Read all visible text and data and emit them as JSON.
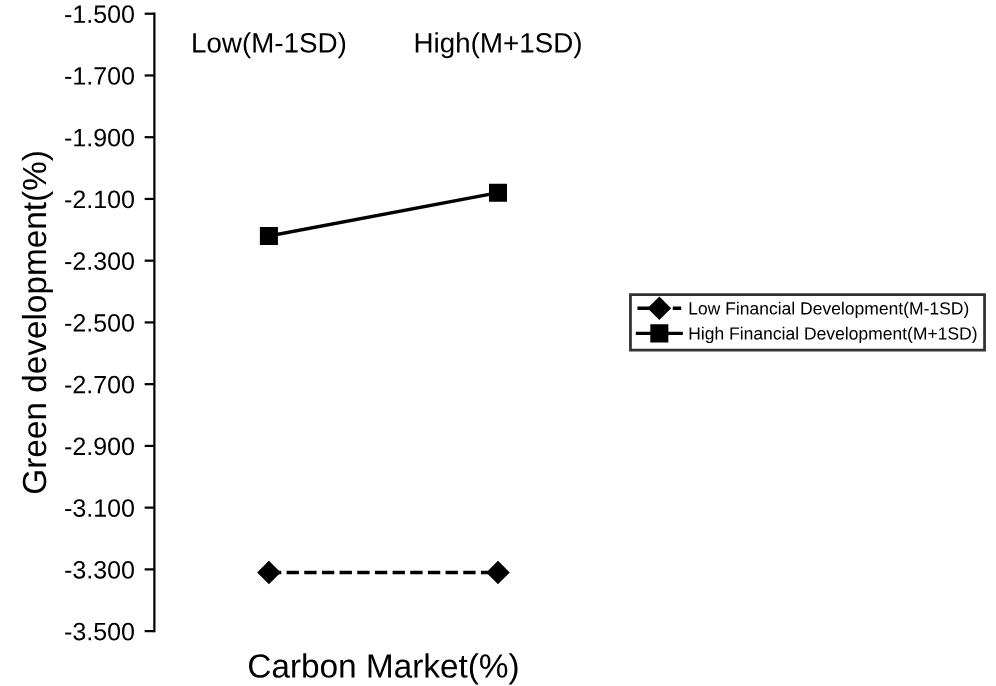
{
  "chart_data": {
    "type": "line",
    "xlabel": "Carbon Market(%)",
    "ylabel": "Green development(%)",
    "categories": [
      "Low(M-1SD)",
      "High(M+1SD)"
    ],
    "series": [
      {
        "name": "Low Financial Development(M-1SD)",
        "color": "#000000",
        "values": [
          -3.31,
          -3.31
        ],
        "marker": "diamond",
        "line_style": "dashed"
      },
      {
        "name": "High Financial Development(M+1SD)",
        "color": "#000000",
        "values": [
          -2.22,
          -2.08
        ],
        "marker": "square",
        "line_style": "solid"
      }
    ],
    "ylim": [
      -3.5,
      -1.5
    ],
    "yticks": [
      {
        "value": -3.5,
        "label": "-3.500"
      },
      {
        "value": -3.3,
        "label": "-3.300"
      },
      {
        "value": -3.1,
        "label": "-3.100"
      },
      {
        "value": -2.9,
        "label": "-2.900"
      },
      {
        "value": -2.7,
        "label": "-2.700"
      },
      {
        "value": -2.5,
        "label": "-2.500"
      },
      {
        "value": -2.3,
        "label": "-2.300"
      },
      {
        "value": -2.1,
        "label": "-2.100"
      },
      {
        "value": -1.9,
        "label": "-1.900"
      },
      {
        "value": -1.7,
        "label": "-1.700"
      },
      {
        "value": -1.5,
        "label": "-1.500"
      }
    ],
    "grid": false,
    "legend": "right"
  }
}
